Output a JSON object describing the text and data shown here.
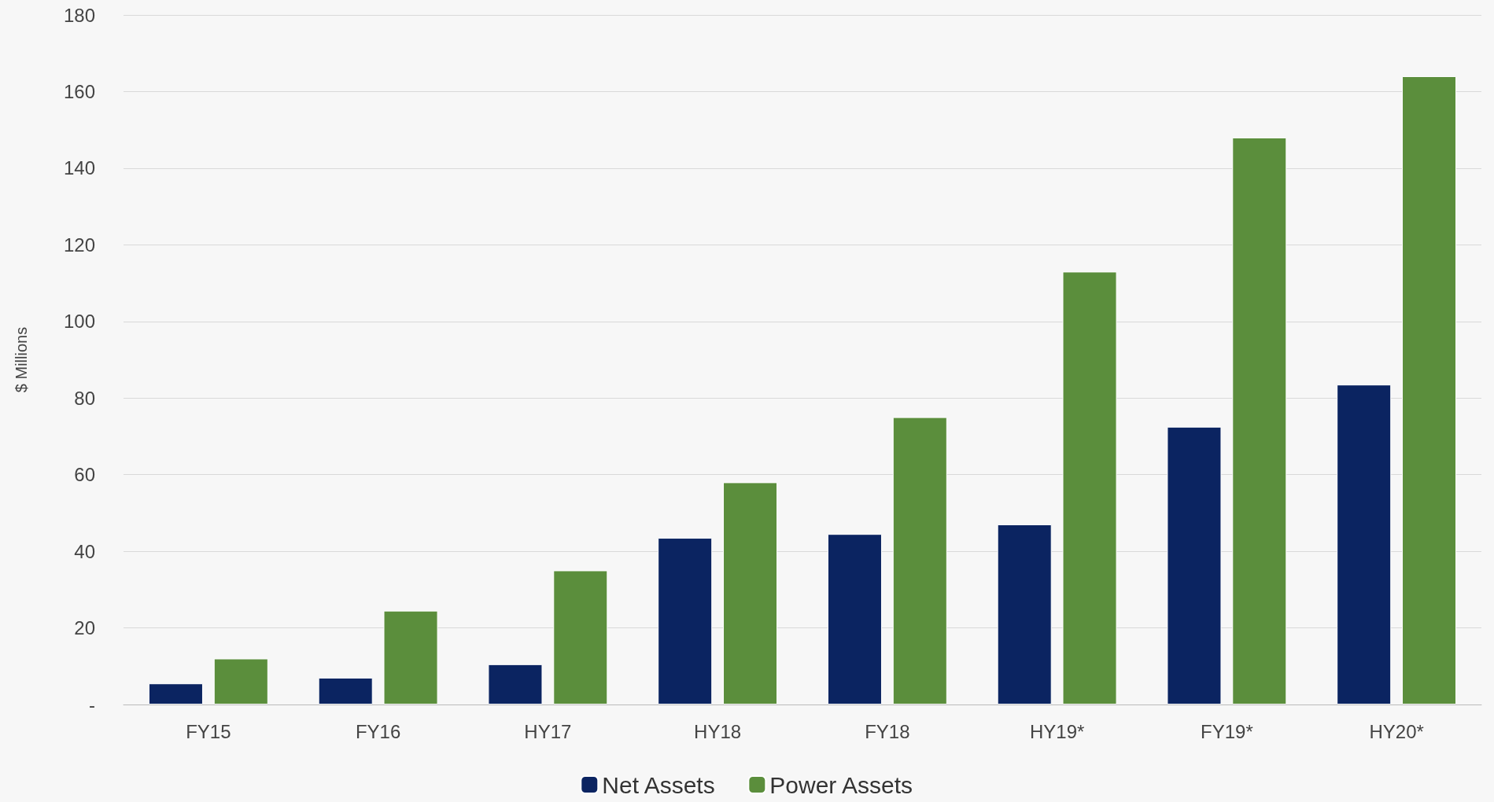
{
  "chart_data": {
    "type": "bar",
    "ylabel": "$ Millions",
    "categories": [
      "FY15",
      "FY16",
      "HY17",
      "HY18",
      "FY18",
      "HY19*",
      "FY19*",
      "HY20*"
    ],
    "series": [
      {
        "name": "Net Assets",
        "color": "#0b2461",
        "values": [
          5.5,
          7,
          10.5,
          43.5,
          44.5,
          47,
          72.5,
          83.5
        ]
      },
      {
        "name": "Power Assets",
        "color": "#5b8e3c",
        "values": [
          12,
          24.5,
          35,
          58,
          75,
          113,
          148,
          164
        ]
      }
    ],
    "ylim": [
      0,
      180
    ],
    "yticks": [
      {
        "value": 0,
        "label": "-"
      },
      20,
      40,
      60,
      80,
      100,
      120,
      140,
      160,
      180
    ],
    "grid": "y",
    "legend": "bottom"
  }
}
